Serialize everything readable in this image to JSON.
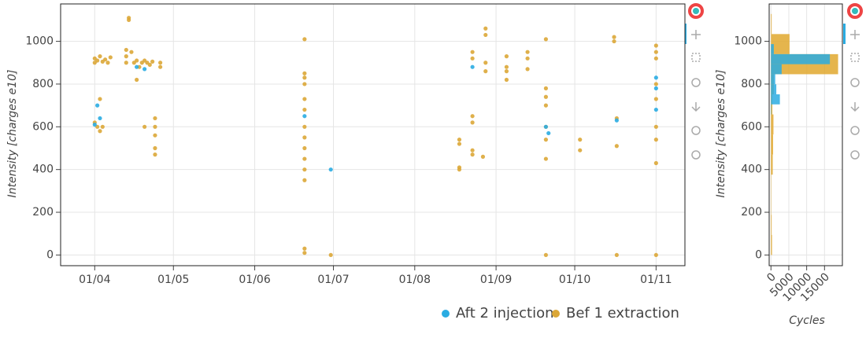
{
  "chart_data": [
    {
      "type": "scatter",
      "ylabel": "Intensity [charges e10]",
      "xlim": [
        -13,
        225
      ],
      "ylim": [
        -50,
        1175
      ],
      "xticks": [
        {
          "value": 0,
          "label": "01/04"
        },
        {
          "value": 30,
          "label": "01/05"
        },
        {
          "value": 61,
          "label": "01/06"
        },
        {
          "value": 91,
          "label": "01/07"
        },
        {
          "value": 122,
          "label": "01/08"
        },
        {
          "value": 153,
          "label": "01/09"
        },
        {
          "value": 183,
          "label": "01/10"
        },
        {
          "value": 214,
          "label": "01/11"
        }
      ],
      "yticks": [
        0,
        200,
        400,
        600,
        800,
        1000
      ],
      "grid": true,
      "legend": "bottom",
      "series": [
        {
          "name": "Aft 2 injection",
          "color": "#2aace2",
          "x": [
            1,
            2,
            0,
            19,
            16,
            80,
            90,
            144,
            172,
            173,
            199,
            214,
            214,
            214
          ],
          "values": [
            700,
            640,
            610,
            870,
            880,
            650,
            400,
            880,
            600,
            570,
            630,
            830,
            780,
            680
          ]
        },
        {
          "name": "Bef 1 extraction",
          "color": "#dba737",
          "x": [
            0,
            0,
            1,
            2,
            3,
            4,
            5,
            6,
            0,
            1,
            2,
            2,
            3,
            13,
            13,
            12,
            12,
            12,
            14,
            15,
            16,
            17,
            18,
            19,
            20,
            21,
            22,
            23,
            23,
            25,
            25,
            16,
            19,
            23,
            23,
            23,
            80,
            80,
            80,
            80,
            80,
            80,
            80,
            80,
            80,
            80,
            80,
            80,
            80,
            80,
            90,
            139,
            139,
            139,
            139,
            144,
            144,
            144,
            144,
            144,
            144,
            149,
            149,
            149,
            149,
            148,
            157,
            157,
            157,
            157,
            165,
            165,
            165,
            172,
            172,
            172,
            172,
            172,
            172,
            172,
            172,
            185,
            185,
            198,
            198,
            199,
            199,
            199,
            214,
            214,
            214,
            214,
            214,
            214,
            214,
            214,
            214
          ],
          "values": [
            900,
            920,
            910,
            930,
            905,
            915,
            900,
            925,
            620,
            600,
            730,
            580,
            600,
            1110,
            1100,
            960,
            930,
            900,
            950,
            900,
            910,
            880,
            900,
            910,
            900,
            890,
            905,
            640,
            600,
            900,
            880,
            820,
            600,
            500,
            470,
            560,
            1010,
            850,
            830,
            800,
            730,
            680,
            600,
            550,
            500,
            450,
            400,
            350,
            30,
            10,
            0,
            540,
            520,
            410,
            400,
            950,
            920,
            650,
            620,
            490,
            470,
            1060,
            1030,
            900,
            860,
            460,
            930,
            880,
            860,
            820,
            950,
            920,
            870,
            1010,
            780,
            740,
            700,
            600,
            540,
            450,
            0,
            540,
            490,
            1020,
            1000,
            640,
            510,
            0,
            980,
            950,
            920,
            800,
            730,
            600,
            540,
            430,
            0
          ]
        }
      ]
    },
    {
      "type": "histogram",
      "orientation": "horizontal",
      "xlabel": "Cycles",
      "ylabel": "Intensity [charges e10]",
      "xlim": [
        -500,
        20000
      ],
      "ylim": [
        -50,
        1175
      ],
      "xticks": [
        0,
        5000,
        10000,
        15000
      ],
      "yticks": [
        0,
        200,
        400,
        600,
        800,
        1000
      ],
      "grid": true,
      "series": [
        {
          "name": "Aft 2 injection",
          "color": "#2aace2",
          "bins": [
            658,
            705,
            752,
            799,
            846,
            893,
            940,
            987
          ],
          "values": [
            100,
            2500,
            1500,
            1200,
            3000,
            16500,
            800
          ]
        },
        {
          "name": "Bef 1 extraction",
          "color": "#e0a82e",
          "bins": [
            0,
            94,
            188,
            282,
            376,
            470,
            564,
            658,
            752,
            846,
            940,
            1034,
            1128
          ],
          "values": [
            300,
            200,
            100,
            100,
            500,
            600,
            700,
            400,
            800,
            18800,
            5200,
            200
          ]
        }
      ]
    }
  ]
}
